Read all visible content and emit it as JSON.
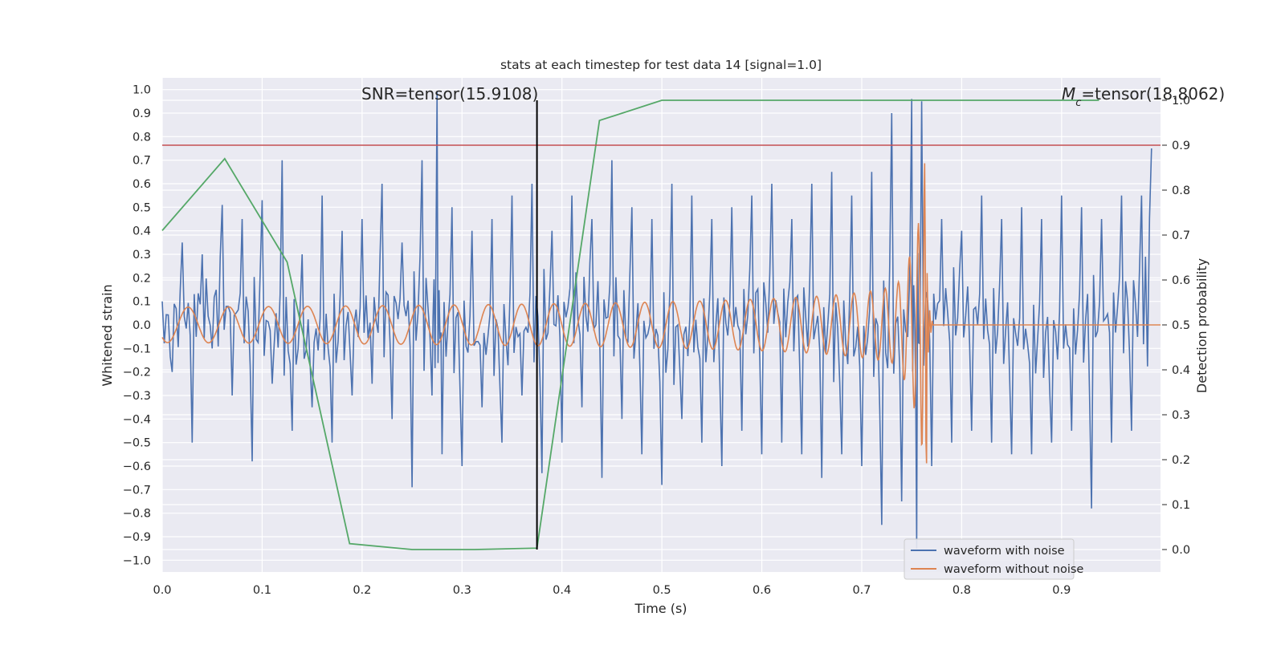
{
  "chart_data": {
    "type": "line",
    "title": "stats at each timestep for test data 14 [signal=1.0]",
    "xlabel": "Time (s)",
    "ylabel": "Whitened strain",
    "y2label": "Detection probability",
    "xlim": [
      0.0,
      0.999
    ],
    "ylim": [
      -1.05,
      1.05
    ],
    "y2lim": [
      -0.05,
      1.05
    ],
    "x_ticks": [
      0.0,
      0.1,
      0.2,
      0.3,
      0.4,
      0.5,
      0.6,
      0.7,
      0.8,
      0.9
    ],
    "y_ticks": [
      -1.0,
      -0.9,
      -0.8,
      -0.7,
      -0.6,
      -0.5,
      -0.4,
      -0.3,
      -0.2,
      -0.1,
      0.0,
      0.1,
      0.2,
      0.3,
      0.4,
      0.5,
      0.6,
      0.7,
      0.8,
      0.9,
      1.0
    ],
    "y2_ticks": [
      0.0,
      0.1,
      0.2,
      0.3,
      0.4,
      0.5,
      0.6,
      0.7,
      0.8,
      0.9,
      1.0
    ],
    "grid": true,
    "legend_position": "lower-right",
    "annotations": {
      "snr": "SNR=tensor(15.9108)",
      "mc_prefix": "M",
      "mc_sub": "c",
      "mc_suffix": "=tensor(18.8062)"
    },
    "threshold_line": {
      "axis": "right",
      "value": 0.9,
      "color": "#c44e52"
    },
    "marker_line": {
      "x": 0.375,
      "y2_from": 0.0,
      "y2_to": 1.0,
      "color": "#000000"
    },
    "series": [
      {
        "name": "waveform with noise",
        "axis": "left",
        "color": "#4c72b0",
        "x": [
          0.0,
          0.01,
          0.02,
          0.03,
          0.04,
          0.05,
          0.06,
          0.07,
          0.08,
          0.09,
          0.1,
          0.11,
          0.12,
          0.13,
          0.14,
          0.15,
          0.16,
          0.17,
          0.18,
          0.19,
          0.2,
          0.21,
          0.22,
          0.23,
          0.24,
          0.25,
          0.26,
          0.27,
          0.275,
          0.28,
          0.29,
          0.3,
          0.31,
          0.32,
          0.33,
          0.34,
          0.35,
          0.36,
          0.37,
          0.38,
          0.39,
          0.4,
          0.41,
          0.42,
          0.43,
          0.44,
          0.45,
          0.46,
          0.47,
          0.48,
          0.49,
          0.5,
          0.51,
          0.52,
          0.53,
          0.54,
          0.55,
          0.56,
          0.57,
          0.58,
          0.59,
          0.6,
          0.61,
          0.62,
          0.63,
          0.64,
          0.65,
          0.66,
          0.67,
          0.68,
          0.69,
          0.7,
          0.71,
          0.72,
          0.73,
          0.74,
          0.75,
          0.755,
          0.76,
          0.77,
          0.78,
          0.79,
          0.8,
          0.81,
          0.82,
          0.83,
          0.84,
          0.85,
          0.86,
          0.87,
          0.88,
          0.89,
          0.9,
          0.91,
          0.92,
          0.93,
          0.94,
          0.95,
          0.96,
          0.97,
          0.98,
          0.99
        ],
        "y": [
          0.1,
          -0.2,
          0.35,
          -0.5,
          0.3,
          -0.1,
          0.51,
          -0.3,
          0.45,
          -0.58,
          0.53,
          -0.25,
          0.7,
          -0.45,
          0.3,
          -0.35,
          0.55,
          -0.5,
          0.4,
          -0.3,
          0.45,
          -0.25,
          0.6,
          -0.4,
          0.35,
          -0.69,
          0.7,
          -0.3,
          0.99,
          -0.55,
          0.5,
          -0.6,
          0.4,
          -0.35,
          0.45,
          -0.5,
          0.55,
          -0.3,
          0.6,
          -0.63,
          0.4,
          -0.5,
          0.55,
          -0.35,
          0.45,
          -0.65,
          0.7,
          -0.4,
          0.5,
          -0.55,
          0.45,
          -0.68,
          0.6,
          -0.4,
          0.55,
          -0.5,
          0.45,
          -0.6,
          0.5,
          -0.45,
          0.55,
          -0.55,
          0.6,
          -0.5,
          0.45,
          -0.55,
          0.6,
          -0.65,
          0.65,
          -0.55,
          0.55,
          -0.6,
          0.65,
          -0.85,
          0.9,
          -0.75,
          0.96,
          -0.95,
          0.95,
          -0.6,
          0.45,
          -0.5,
          0.4,
          -0.45,
          0.55,
          -0.5,
          0.45,
          -0.55,
          0.5,
          -0.55,
          0.45,
          -0.5,
          0.55,
          -0.45,
          0.5,
          -0.78,
          0.45,
          -0.5,
          0.55,
          -0.45,
          0.55,
          0.75
        ]
      },
      {
        "name": "waveform without noise",
        "axis": "left",
        "color": "#dd8452"
      },
      {
        "name": "",
        "axis": "right",
        "color": "#55a868",
        "x": [
          0.0,
          0.0625,
          0.125,
          0.1875,
          0.25,
          0.3125,
          0.375,
          0.4375,
          0.5,
          0.5625,
          0.625,
          0.6875,
          0.75,
          0.8125,
          0.875,
          0.9375
        ],
        "y": [
          0.71,
          0.87,
          0.64,
          0.013,
          0.0,
          0.0,
          0.003,
          0.955,
          1.0,
          1.0,
          1.0,
          1.0,
          1.0,
          1.0,
          1.0,
          1.0
        ]
      }
    ]
  }
}
